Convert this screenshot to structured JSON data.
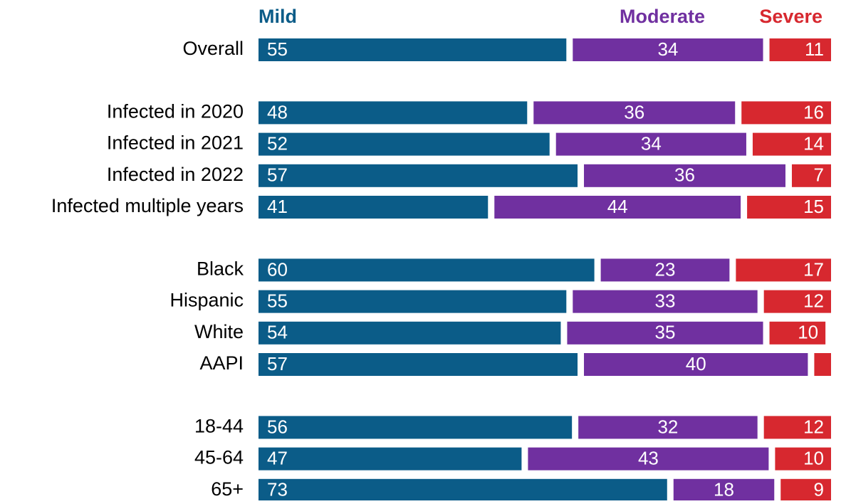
{
  "chart_data": {
    "type": "stacked-bar-horizontal",
    "categories": [
      "Overall",
      null,
      "Infected in 2020",
      "Infected in 2021",
      "Infected in 2022",
      "Infected multiple years",
      null,
      "Black",
      "Hispanic",
      "White",
      "AAPI",
      null,
      "18-44",
      "45-64",
      "65+"
    ],
    "xlim": [
      0,
      100
    ],
    "series": [
      {
        "name": "Mild",
        "color": "#0b5c88",
        "values": [
          55,
          null,
          48,
          52,
          57,
          41,
          null,
          60,
          55,
          54,
          57,
          null,
          56,
          47,
          73
        ]
      },
      {
        "name": "Moderate",
        "color": "#7030a0",
        "values": [
          34,
          null,
          36,
          34,
          36,
          44,
          null,
          23,
          33,
          35,
          40,
          null,
          32,
          43,
          18
        ]
      },
      {
        "name": "Severe",
        "color": "#d7282f",
        "values": [
          11,
          null,
          16,
          14,
          7,
          15,
          null,
          17,
          12,
          10,
          3,
          null,
          12,
          10,
          9
        ],
        "value_labels": [
          "11",
          null,
          "16",
          "14",
          "7",
          "15",
          null,
          "17",
          "12",
          "10",
          null,
          null,
          "12",
          "10",
          "9"
        ]
      }
    ]
  }
}
